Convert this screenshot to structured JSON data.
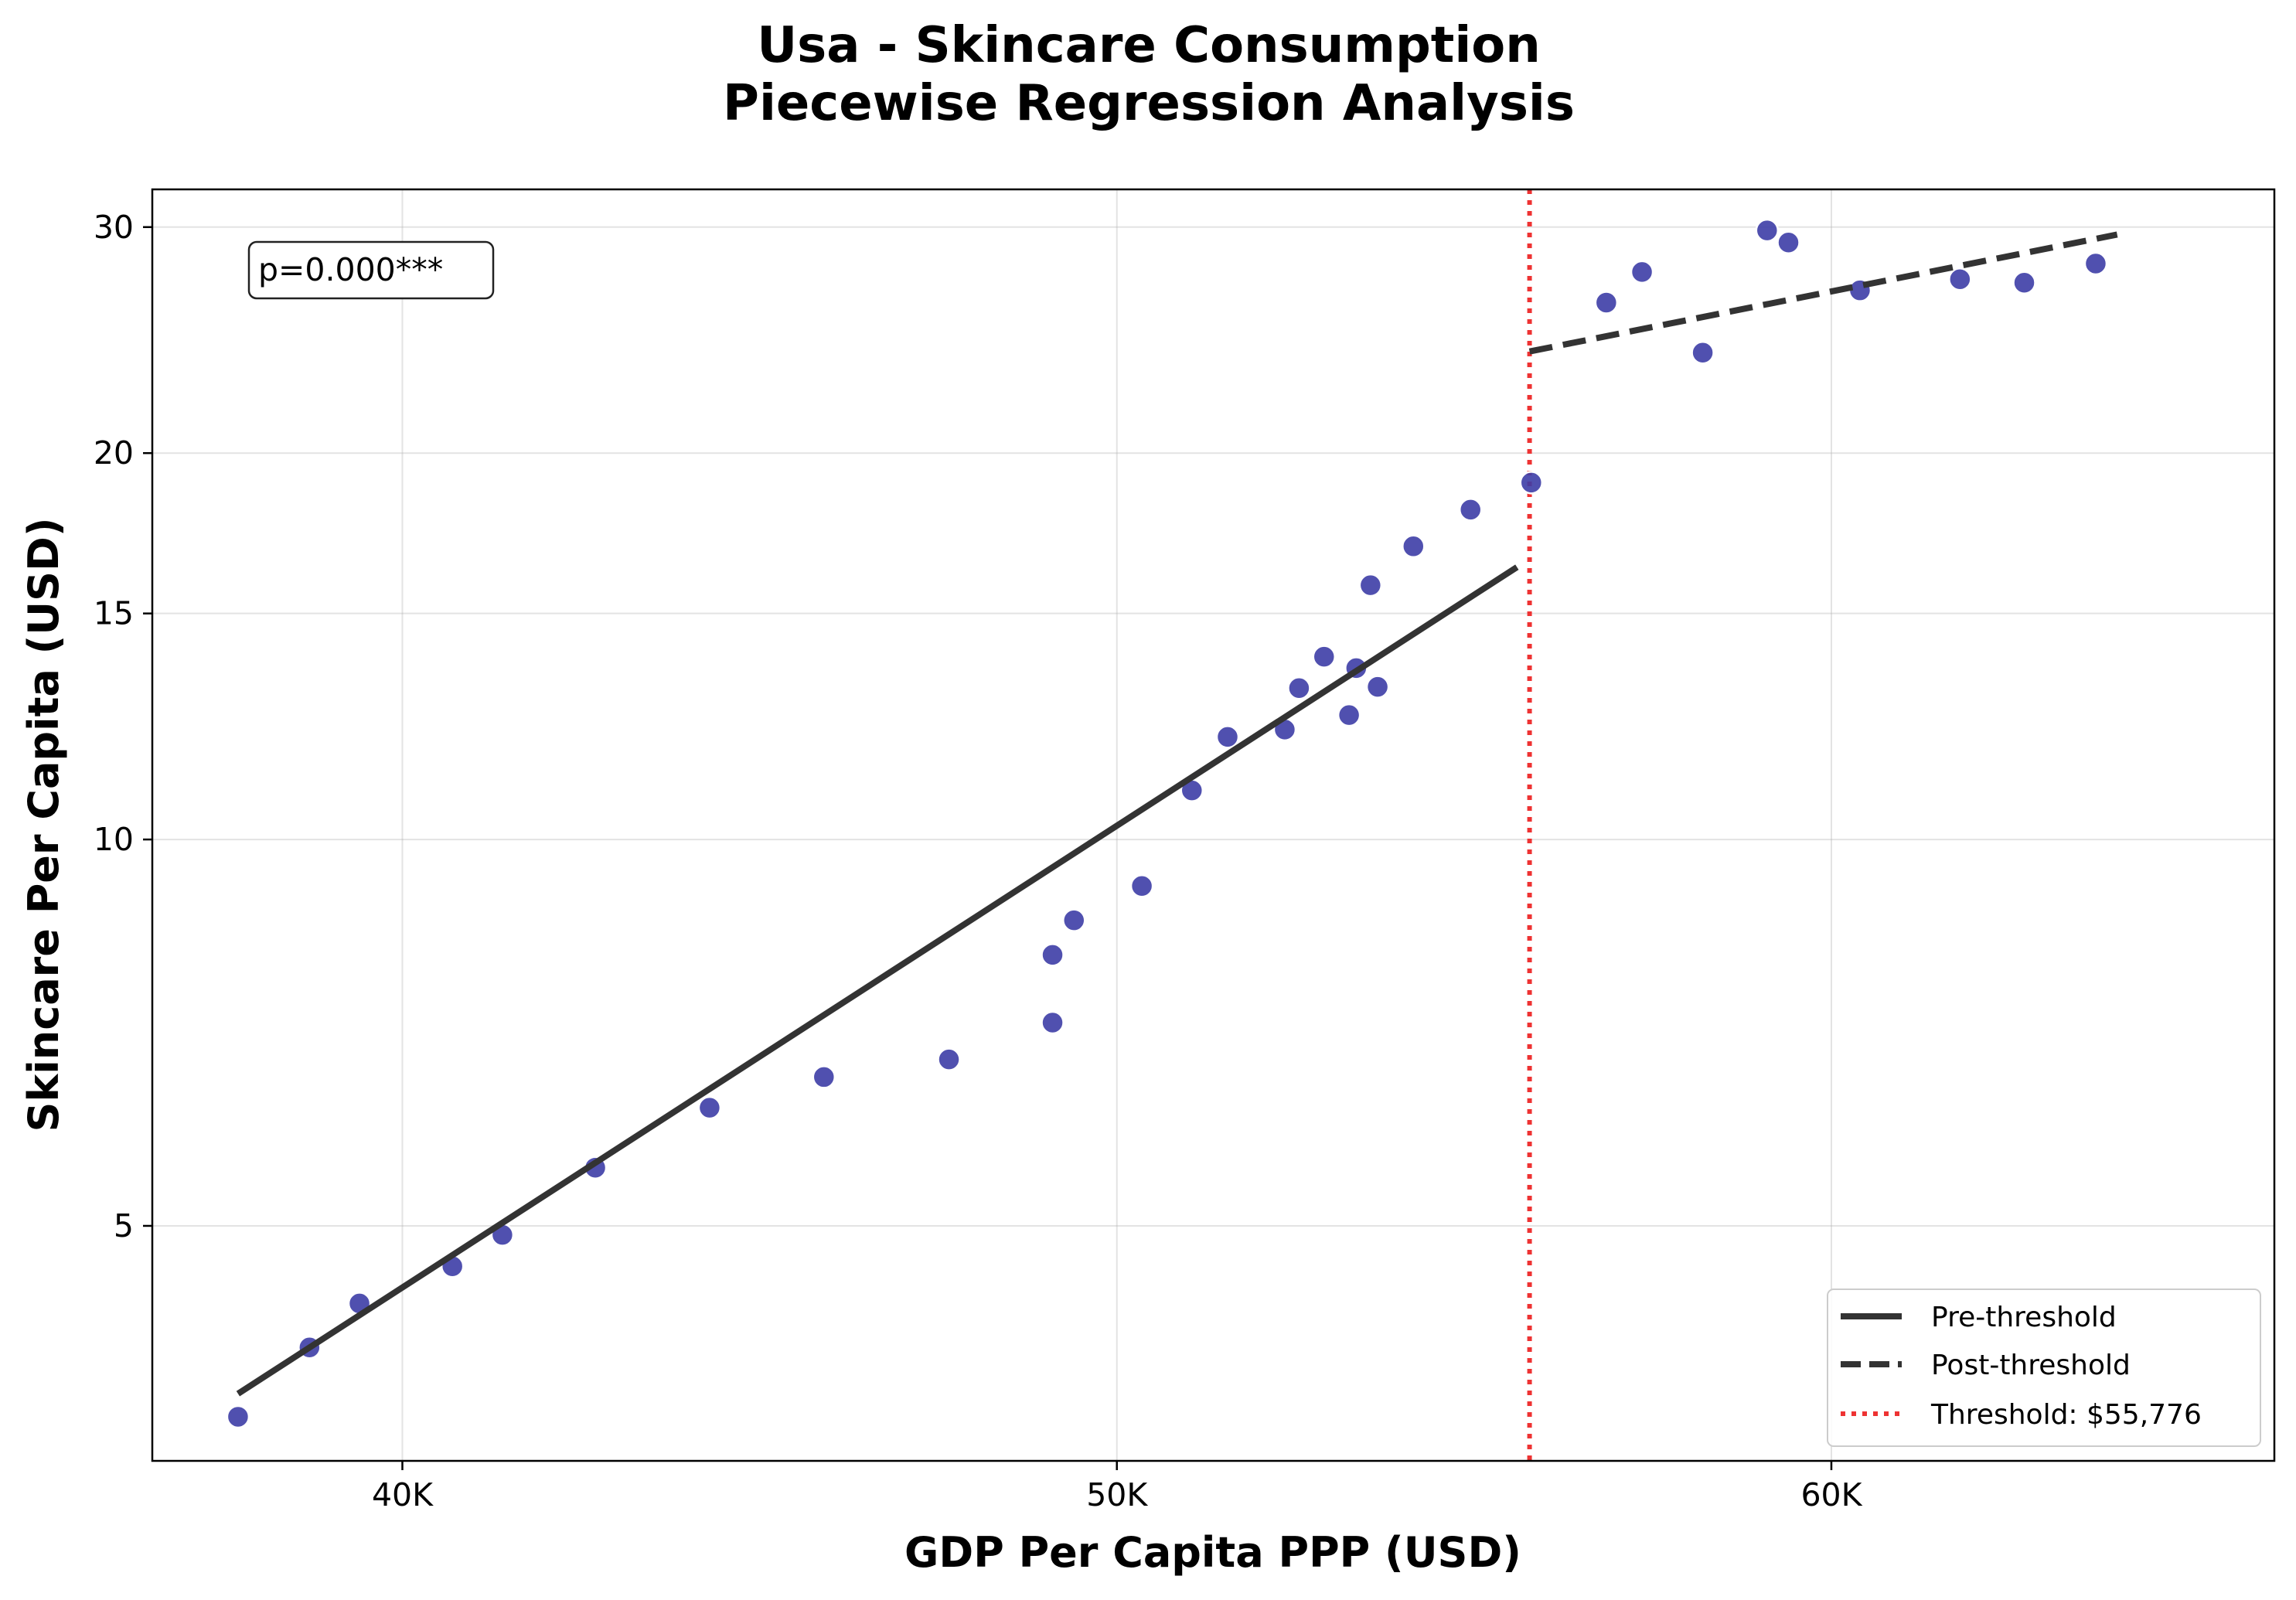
{
  "chart_data": {
    "type": "scatter",
    "title": [
      "Usa - Skincare Consumption",
      "Piecewise Regression Analysis"
    ],
    "xlabel": "GDP Per Capita PPP (USD)",
    "ylabel": "Skincare Per Capita (USD)",
    "x_scale": "linear",
    "y_scale": "log",
    "xlim": [
      36500,
      66200
    ],
    "ylim": [
      3.28,
      32.1
    ],
    "x_ticks": [
      40000,
      50000,
      60000
    ],
    "x_tick_labels": [
      "40K",
      "50K",
      "60K"
    ],
    "y_ticks": [
      5,
      10,
      15,
      20,
      30
    ],
    "y_tick_labels": [
      "5",
      "10",
      "15",
      "20",
      "30"
    ],
    "grid": true,
    "points": {
      "color": "#3d3da6",
      "x": [
        37700,
        38700,
        39400,
        40700,
        41400,
        42700,
        44300,
        45900,
        47650,
        49100,
        49100,
        49400,
        50350,
        51050,
        51550,
        52350,
        52550,
        52900,
        53250,
        53350,
        53550,
        53650,
        54150,
        54950,
        55800,
        56850,
        57350,
        58200,
        59100,
        59400,
        60400,
        61800,
        62700,
        63700
      ],
      "y": [
        3.55,
        4.02,
        4.35,
        4.65,
        4.92,
        5.55,
        6.18,
        6.53,
        6.74,
        7.2,
        8.13,
        8.65,
        9.2,
        10.92,
        12.02,
        12.18,
        13.12,
        13.88,
        12.5,
        13.6,
        15.78,
        13.15,
        16.92,
        18.07,
        18.97,
        26.2,
        27.68,
        23.95,
        29.82,
        29.18,
        26.78,
        27.32,
        27.15,
        28.1
      ]
    },
    "series": [
      {
        "name": "Pre-threshold",
        "style": "solid",
        "color": "#333333",
        "x": [
          37700,
          55600
        ],
        "y": [
          3.7,
          16.3
        ]
      },
      {
        "name": "Post-threshold",
        "style": "dashed",
        "color": "#333333",
        "x": [
          55776,
          64000
        ],
        "y": [
          24.0,
          29.6
        ]
      }
    ],
    "threshold": {
      "name": "Threshold: $55,776",
      "x": 55776,
      "color": "#ee3333",
      "style": "dotted"
    },
    "annotation": "p=0.000***",
    "legend_position": "lower right"
  }
}
